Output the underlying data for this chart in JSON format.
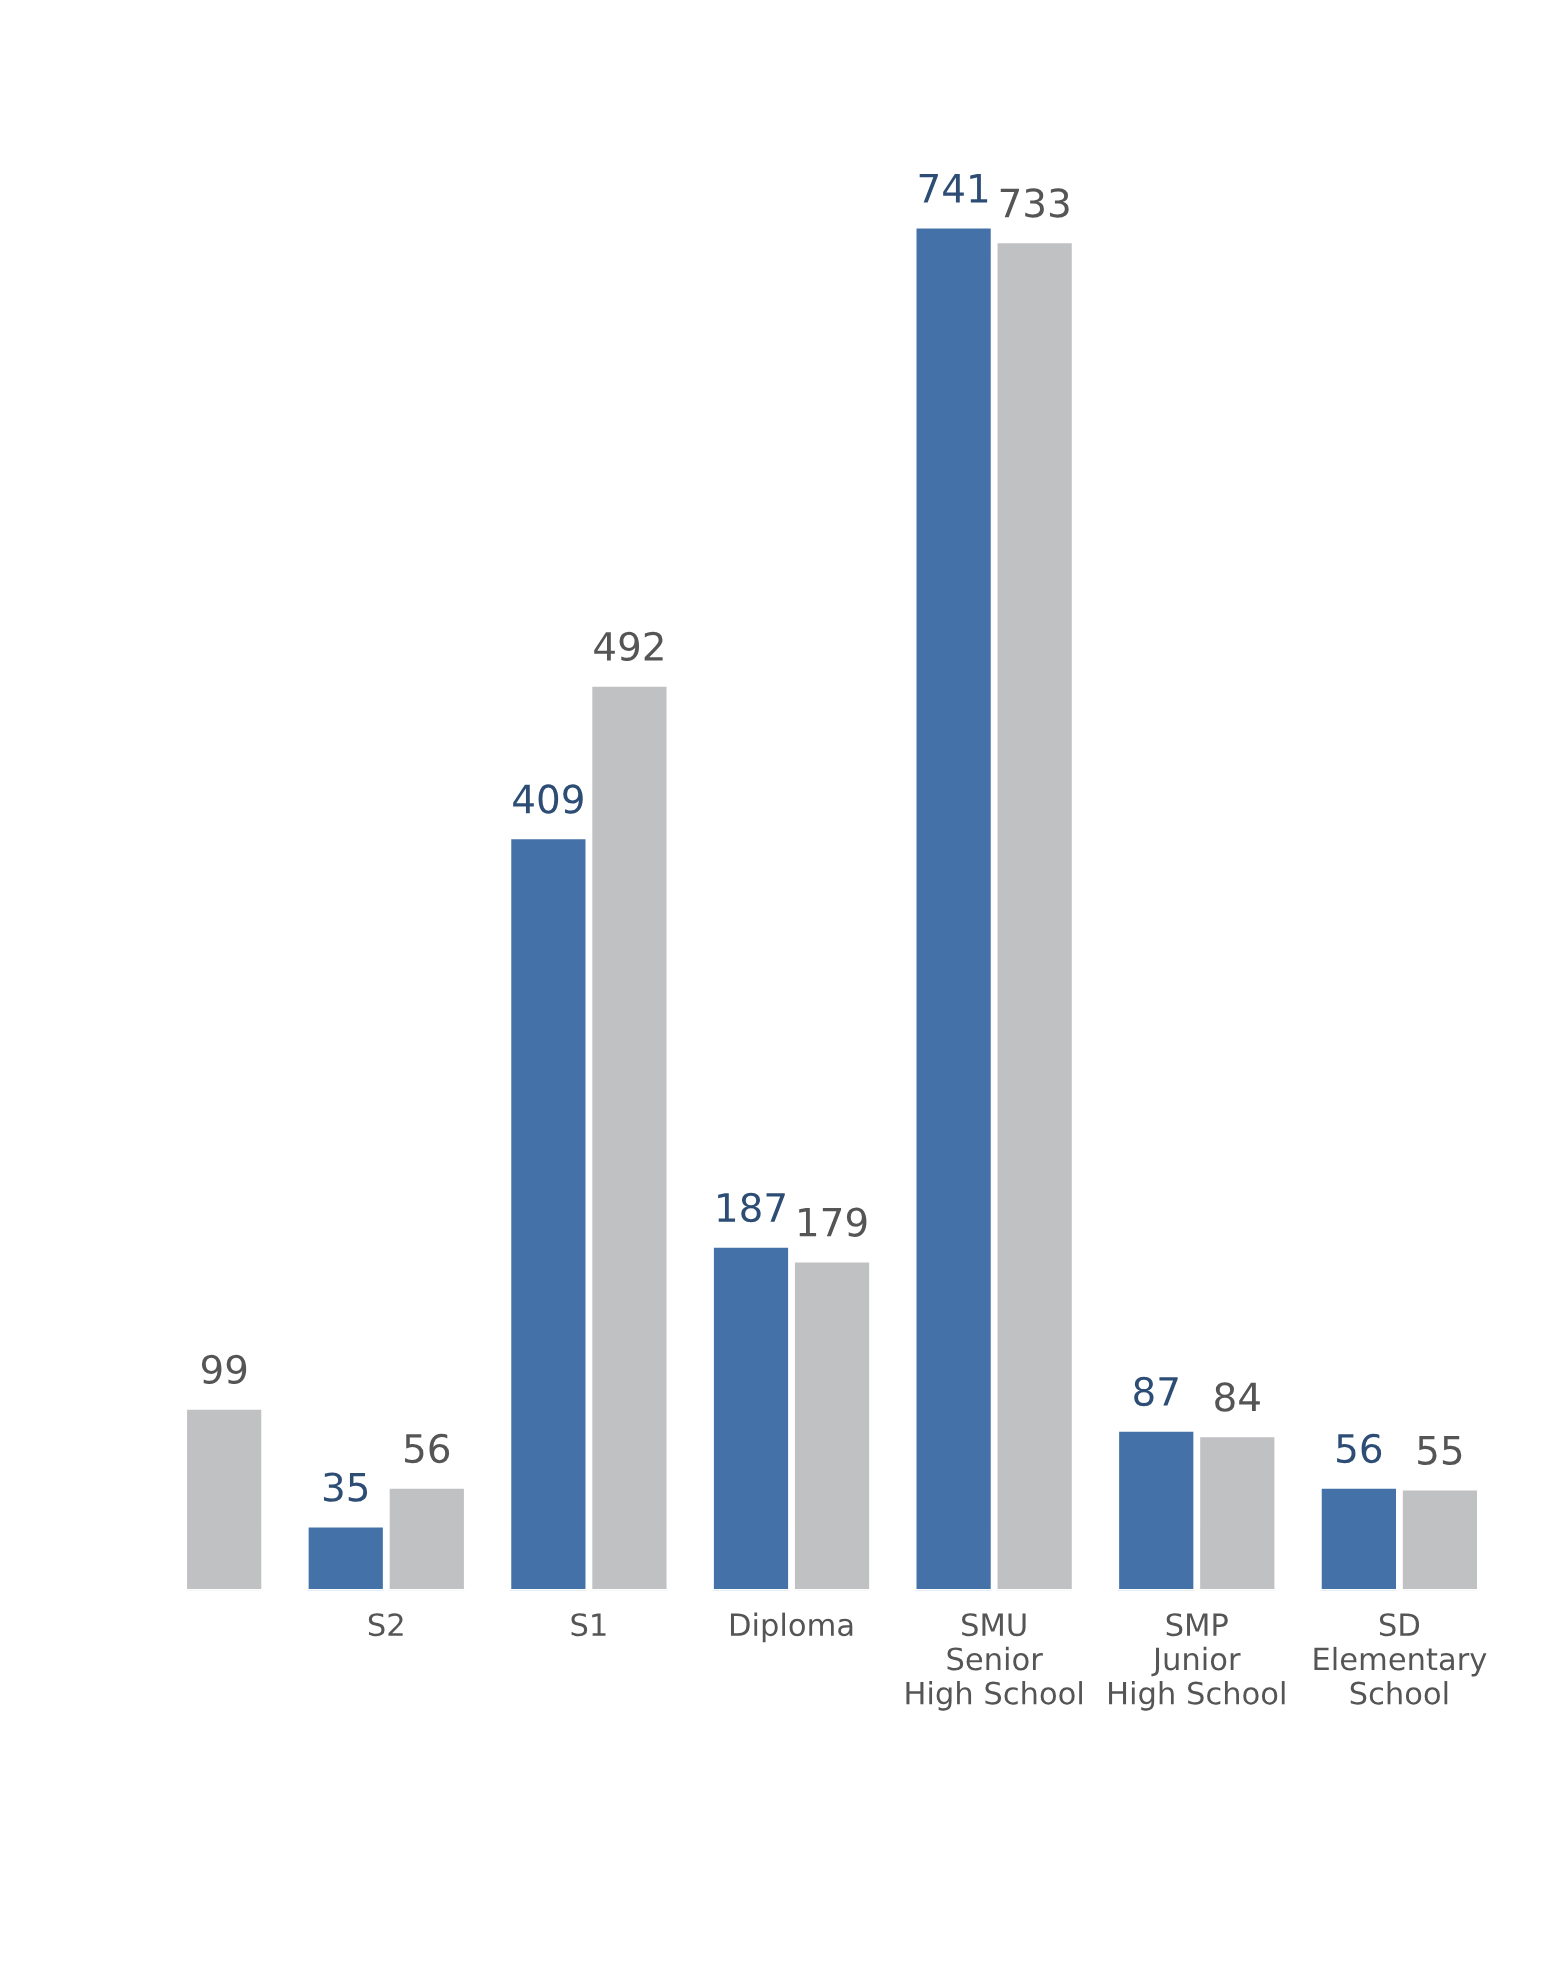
{
  "chart_data": {
    "type": "bar",
    "categories": [
      null,
      "S2",
      "S1",
      "Diploma",
      "SMU\nSenior\nHigh School",
      "SMP\nJunior\nHigh School",
      "SD\nElementary\nSchool"
    ],
    "series": [
      {
        "color": "#4472a8",
        "values": [
          null,
          35,
          409,
          187,
          741,
          87,
          56
        ]
      },
      {
        "color": "#c0c1c3",
        "values": [
          99,
          56,
          492,
          179,
          733,
          84,
          55
        ]
      }
    ],
    "data_labels": true,
    "grid": false,
    "legend": false
  }
}
